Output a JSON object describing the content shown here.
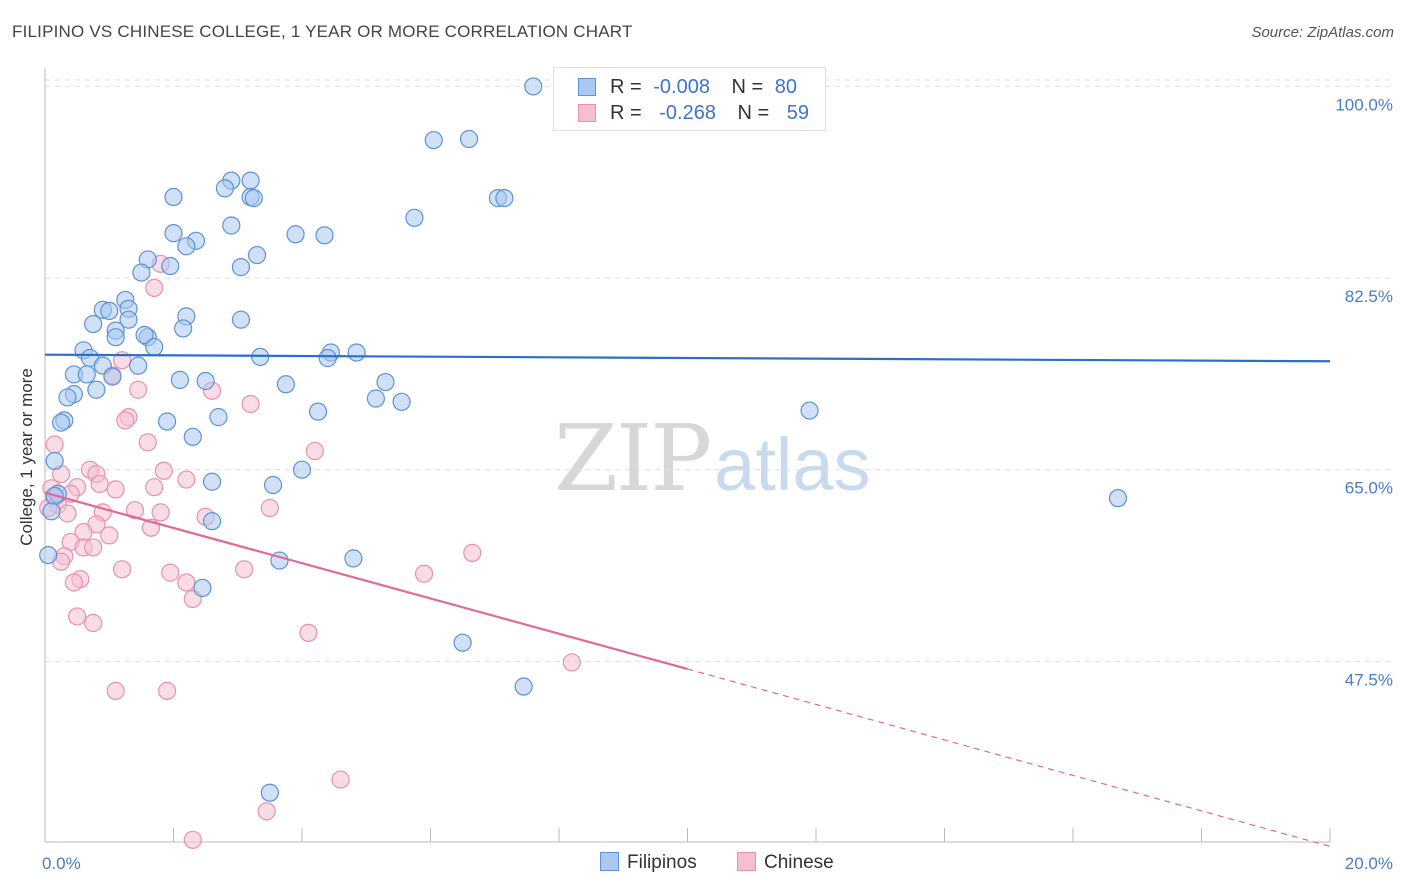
{
  "header": {
    "title": "FILIPINO VS CHINESE COLLEGE, 1 YEAR OR MORE CORRELATION CHART",
    "source": "Source: ZipAtlas.com"
  },
  "watermark": {
    "zip": "ZIP",
    "atlas": "atlas"
  },
  "legend_top": {
    "filipinos": {
      "r_label": "R =",
      "r_value": "-0.008",
      "n_label": "N =",
      "n_value": "80"
    },
    "chinese": {
      "r_label": "R =",
      "r_value": "-0.268",
      "n_label": "N =",
      "n_value": "59"
    }
  },
  "legend_bottom": {
    "filipinos": "Filipinos",
    "chinese": "Chinese"
  },
  "colors": {
    "filipinos_fill": "#aac8f0",
    "filipinos_stroke": "#5b93d6",
    "filipinos_line": "#2a6fc9",
    "chinese_fill": "#f6bfd1",
    "chinese_stroke": "#e691ae",
    "chinese_line": "#e06a94",
    "tick_text": "#4a7cc7",
    "grid": "#dddddd"
  },
  "chart_data": {
    "type": "scatter",
    "title": "FILIPINO VS CHINESE COLLEGE, 1 YEAR OR MORE CORRELATION CHART",
    "xlabel": "",
    "ylabel": "College, 1 year or more",
    "xlim": [
      0,
      20
    ],
    "ylim": [
      31,
      101.5
    ],
    "x_ticks": [
      "0.0%",
      "20.0%"
    ],
    "y_ticks": [
      {
        "value": 47.5,
        "label": "47.5%"
      },
      {
        "value": 65.0,
        "label": "65.0%"
      },
      {
        "value": 82.5,
        "label": "82.5%"
      },
      {
        "value": 100.0,
        "label": "100.0%"
      }
    ],
    "series": [
      {
        "name": "Filipinos",
        "r": -0.008,
        "n": 80,
        "trend": {
          "x0": 0,
          "y0": 75.5,
          "x1": 20,
          "y1": 74.9
        },
        "points": [
          [
            7.6,
            100.0
          ],
          [
            6.05,
            95.1
          ],
          [
            6.6,
            95.2
          ],
          [
            2.9,
            91.4
          ],
          [
            3.2,
            91.4
          ],
          [
            2.8,
            90.7
          ],
          [
            3.2,
            89.9
          ],
          [
            3.25,
            89.8
          ],
          [
            2.0,
            89.9
          ],
          [
            7.05,
            89.8
          ],
          [
            7.15,
            89.8
          ],
          [
            5.75,
            88.0
          ],
          [
            2.9,
            87.3
          ],
          [
            2.0,
            86.6
          ],
          [
            2.35,
            85.9
          ],
          [
            3.9,
            86.5
          ],
          [
            4.35,
            86.4
          ],
          [
            2.2,
            85.4
          ],
          [
            3.3,
            84.6
          ],
          [
            1.6,
            84.2
          ],
          [
            1.95,
            83.6
          ],
          [
            1.5,
            83.0
          ],
          [
            3.05,
            83.5
          ],
          [
            1.25,
            80.5
          ],
          [
            1.3,
            79.7
          ],
          [
            0.9,
            79.6
          ],
          [
            1.0,
            79.5
          ],
          [
            2.2,
            79.0
          ],
          [
            1.3,
            78.7
          ],
          [
            3.05,
            78.7
          ],
          [
            0.75,
            78.3
          ],
          [
            1.1,
            77.7
          ],
          [
            2.15,
            77.9
          ],
          [
            1.1,
            77.1
          ],
          [
            1.6,
            77.1
          ],
          [
            1.55,
            77.3
          ],
          [
            1.7,
            76.2
          ],
          [
            0.6,
            75.9
          ],
          [
            0.7,
            75.2
          ],
          [
            4.45,
            75.7
          ],
          [
            4.85,
            75.7
          ],
          [
            4.4,
            75.2
          ],
          [
            3.35,
            75.3
          ],
          [
            0.9,
            74.5
          ],
          [
            1.45,
            74.5
          ],
          [
            0.45,
            73.7
          ],
          [
            0.65,
            73.7
          ],
          [
            1.05,
            73.5
          ],
          [
            2.1,
            73.2
          ],
          [
            2.5,
            73.1
          ],
          [
            3.75,
            72.8
          ],
          [
            5.3,
            73.0
          ],
          [
            0.8,
            72.3
          ],
          [
            0.45,
            71.9
          ],
          [
            0.35,
            71.6
          ],
          [
            5.15,
            71.5
          ],
          [
            5.55,
            71.2
          ],
          [
            0.3,
            69.5
          ],
          [
            0.25,
            69.3
          ],
          [
            4.25,
            70.3
          ],
          [
            11.9,
            70.4
          ],
          [
            1.9,
            69.4
          ],
          [
            2.7,
            69.8
          ],
          [
            2.3,
            68.0
          ],
          [
            0.15,
            65.8
          ],
          [
            4.0,
            65.0
          ],
          [
            2.6,
            63.9
          ],
          [
            3.55,
            63.6
          ],
          [
            0.2,
            62.8
          ],
          [
            0.15,
            62.6
          ],
          [
            2.6,
            60.3
          ],
          [
            0.05,
            57.2
          ],
          [
            3.65,
            56.7
          ],
          [
            4.8,
            56.9
          ],
          [
            2.45,
            54.2
          ],
          [
            16.7,
            62.4
          ],
          [
            6.5,
            49.2
          ],
          [
            7.45,
            45.2
          ],
          [
            3.5,
            35.5
          ],
          [
            0.1,
            61.2
          ]
        ]
      },
      {
        "name": "Chinese",
        "r": -0.268,
        "n": 59,
        "trend": {
          "x0": 0,
          "y0": 62.9,
          "x1": 10.0,
          "y1": 46.8
        },
        "trend_dashed": {
          "x0": 10.0,
          "y0": 46.8,
          "x1": 20,
          "y1": 30.6
        },
        "points": [
          [
            1.8,
            83.8
          ],
          [
            1.7,
            81.6
          ],
          [
            1.2,
            75.0
          ],
          [
            1.05,
            73.6
          ],
          [
            1.45,
            72.3
          ],
          [
            2.6,
            72.2
          ],
          [
            3.2,
            71.0
          ],
          [
            1.3,
            69.8
          ],
          [
            1.25,
            69.5
          ],
          [
            1.6,
            67.5
          ],
          [
            0.15,
            67.3
          ],
          [
            4.2,
            66.7
          ],
          [
            0.7,
            65.0
          ],
          [
            1.85,
            64.9
          ],
          [
            0.25,
            64.6
          ],
          [
            0.8,
            64.6
          ],
          [
            2.2,
            64.1
          ],
          [
            0.85,
            63.7
          ],
          [
            1.7,
            63.4
          ],
          [
            0.5,
            63.4
          ],
          [
            1.1,
            63.2
          ],
          [
            0.4,
            62.8
          ],
          [
            0.15,
            62.4
          ],
          [
            0.2,
            61.8
          ],
          [
            3.5,
            61.5
          ],
          [
            1.4,
            61.3
          ],
          [
            0.35,
            61.0
          ],
          [
            0.9,
            61.1
          ],
          [
            1.8,
            61.1
          ],
          [
            2.5,
            60.7
          ],
          [
            0.8,
            60.0
          ],
          [
            1.65,
            59.7
          ],
          [
            0.6,
            59.3
          ],
          [
            1.0,
            59.0
          ],
          [
            0.4,
            58.4
          ],
          [
            0.6,
            57.9
          ],
          [
            0.75,
            57.9
          ],
          [
            6.65,
            57.4
          ],
          [
            0.3,
            57.1
          ],
          [
            0.25,
            56.6
          ],
          [
            1.2,
            55.9
          ],
          [
            3.1,
            55.9
          ],
          [
            1.95,
            55.6
          ],
          [
            5.9,
            55.5
          ],
          [
            0.55,
            55.0
          ],
          [
            0.45,
            54.7
          ],
          [
            2.2,
            54.7
          ],
          [
            2.3,
            53.2
          ],
          [
            0.5,
            51.6
          ],
          [
            0.75,
            51.0
          ],
          [
            4.1,
            50.1
          ],
          [
            8.2,
            47.4
          ],
          [
            1.1,
            44.8
          ],
          [
            1.9,
            44.8
          ],
          [
            4.6,
            36.7
          ],
          [
            3.45,
            33.8
          ],
          [
            2.3,
            31.2
          ],
          [
            0.05,
            61.5
          ],
          [
            0.1,
            63.3
          ]
        ]
      }
    ]
  }
}
